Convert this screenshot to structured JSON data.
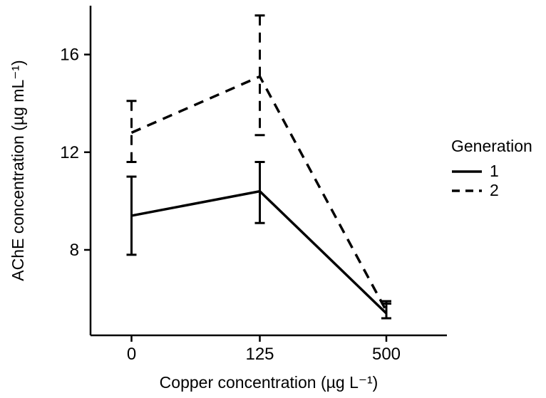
{
  "figure": {
    "background": "#ffffff"
  },
  "chart_data": {
    "type": "line",
    "title": "",
    "xlabel": "Copper concentration (µg L⁻¹)",
    "ylabel": "AChE concentration (µg mL⁻¹)",
    "x_categories": [
      "0",
      "125",
      "500"
    ],
    "yticks": [
      8,
      12,
      16
    ],
    "ylim": [
      4.5,
      18
    ],
    "grid": false,
    "legend_title": "Generation",
    "legend_position": "right",
    "axis_color": "#000000",
    "series": [
      {
        "name": "1",
        "linetype": "solid",
        "values": [
          9.4,
          10.4,
          5.4
        ],
        "err_low": [
          7.8,
          9.1,
          5.2
        ],
        "err_high": [
          11.0,
          11.6,
          5.8
        ]
      },
      {
        "name": "2",
        "linetype": "dashed",
        "values": [
          12.8,
          15.1,
          5.5
        ],
        "err_low": [
          11.6,
          12.7,
          5.2
        ],
        "err_high": [
          14.1,
          17.6,
          5.9
        ]
      }
    ]
  }
}
